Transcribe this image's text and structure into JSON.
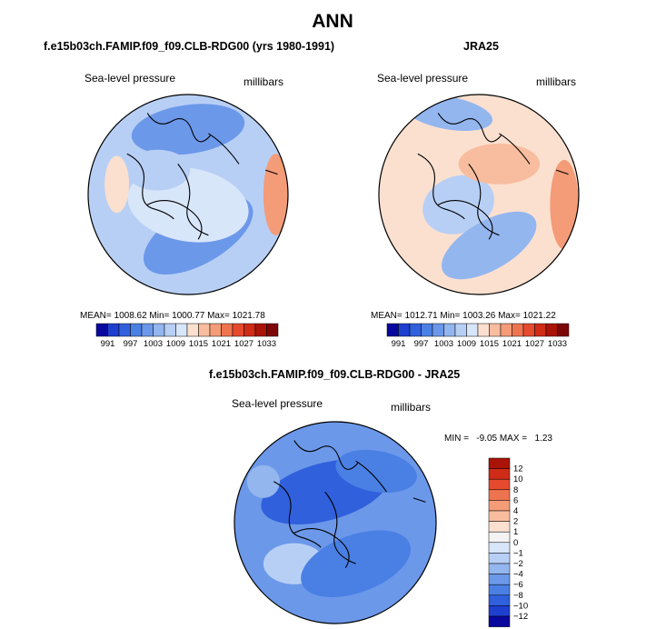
{
  "page_title": "ANN",
  "colors": {
    "blues": [
      "#08089e",
      "#1f3fcf",
      "#3060dc",
      "#4a80e4",
      "#6c98ea",
      "#93b6ef",
      "#b8cff5",
      "#d8e6fa"
    ],
    "neutral": "#f3f3f3",
    "reds": [
      "#fbe0d0",
      "#f8bd9f",
      "#f49b78",
      "#ee7450",
      "#e64a2e",
      "#cf2b17",
      "#aa1408",
      "#7d0606"
    ]
  },
  "chart_data": [
    {
      "type": "heatmap",
      "projection": "north-polar-stereographic",
      "title": "f.e15b03ch.FAMIP.f09_f09.CLB-RDG00 (yrs 1980-1991)",
      "variable": "Sea-level pressure",
      "units": "millibars",
      "stats": "MEAN= 1008.62  Min= 1000.77  Max= 1021.78",
      "colorbar": {
        "orientation": "horizontal",
        "levels": [
          "991",
          "997",
          "1003",
          "1009",
          "1015",
          "1021",
          "1027",
          "1033"
        ]
      }
    },
    {
      "type": "heatmap",
      "projection": "north-polar-stereographic",
      "title": "JRA25",
      "variable": "Sea-level pressure",
      "units": "millibars",
      "stats": "MEAN= 1012.71  Min= 1003.26  Max= 1021.22",
      "colorbar": {
        "orientation": "horizontal",
        "levels": [
          "991",
          "997",
          "1003",
          "1009",
          "1015",
          "1021",
          "1027",
          "1033"
        ]
      }
    },
    {
      "type": "heatmap",
      "projection": "north-polar-stereographic",
      "title": "f.e15b03ch.FAMIP.f09_f09.CLB-RDG00 - JRA25",
      "variable": "Sea-level pressure",
      "units": "millibars",
      "stats": "MIN =   -9.05 MAX =   1.23",
      "colorbar": {
        "orientation": "vertical",
        "levels": [
          "12",
          "10",
          "8",
          "6",
          "4",
          "2",
          "1",
          "0",
          "−1",
          "−2",
          "−4",
          "−6",
          "−8",
          "−10",
          "−12"
        ]
      }
    }
  ]
}
